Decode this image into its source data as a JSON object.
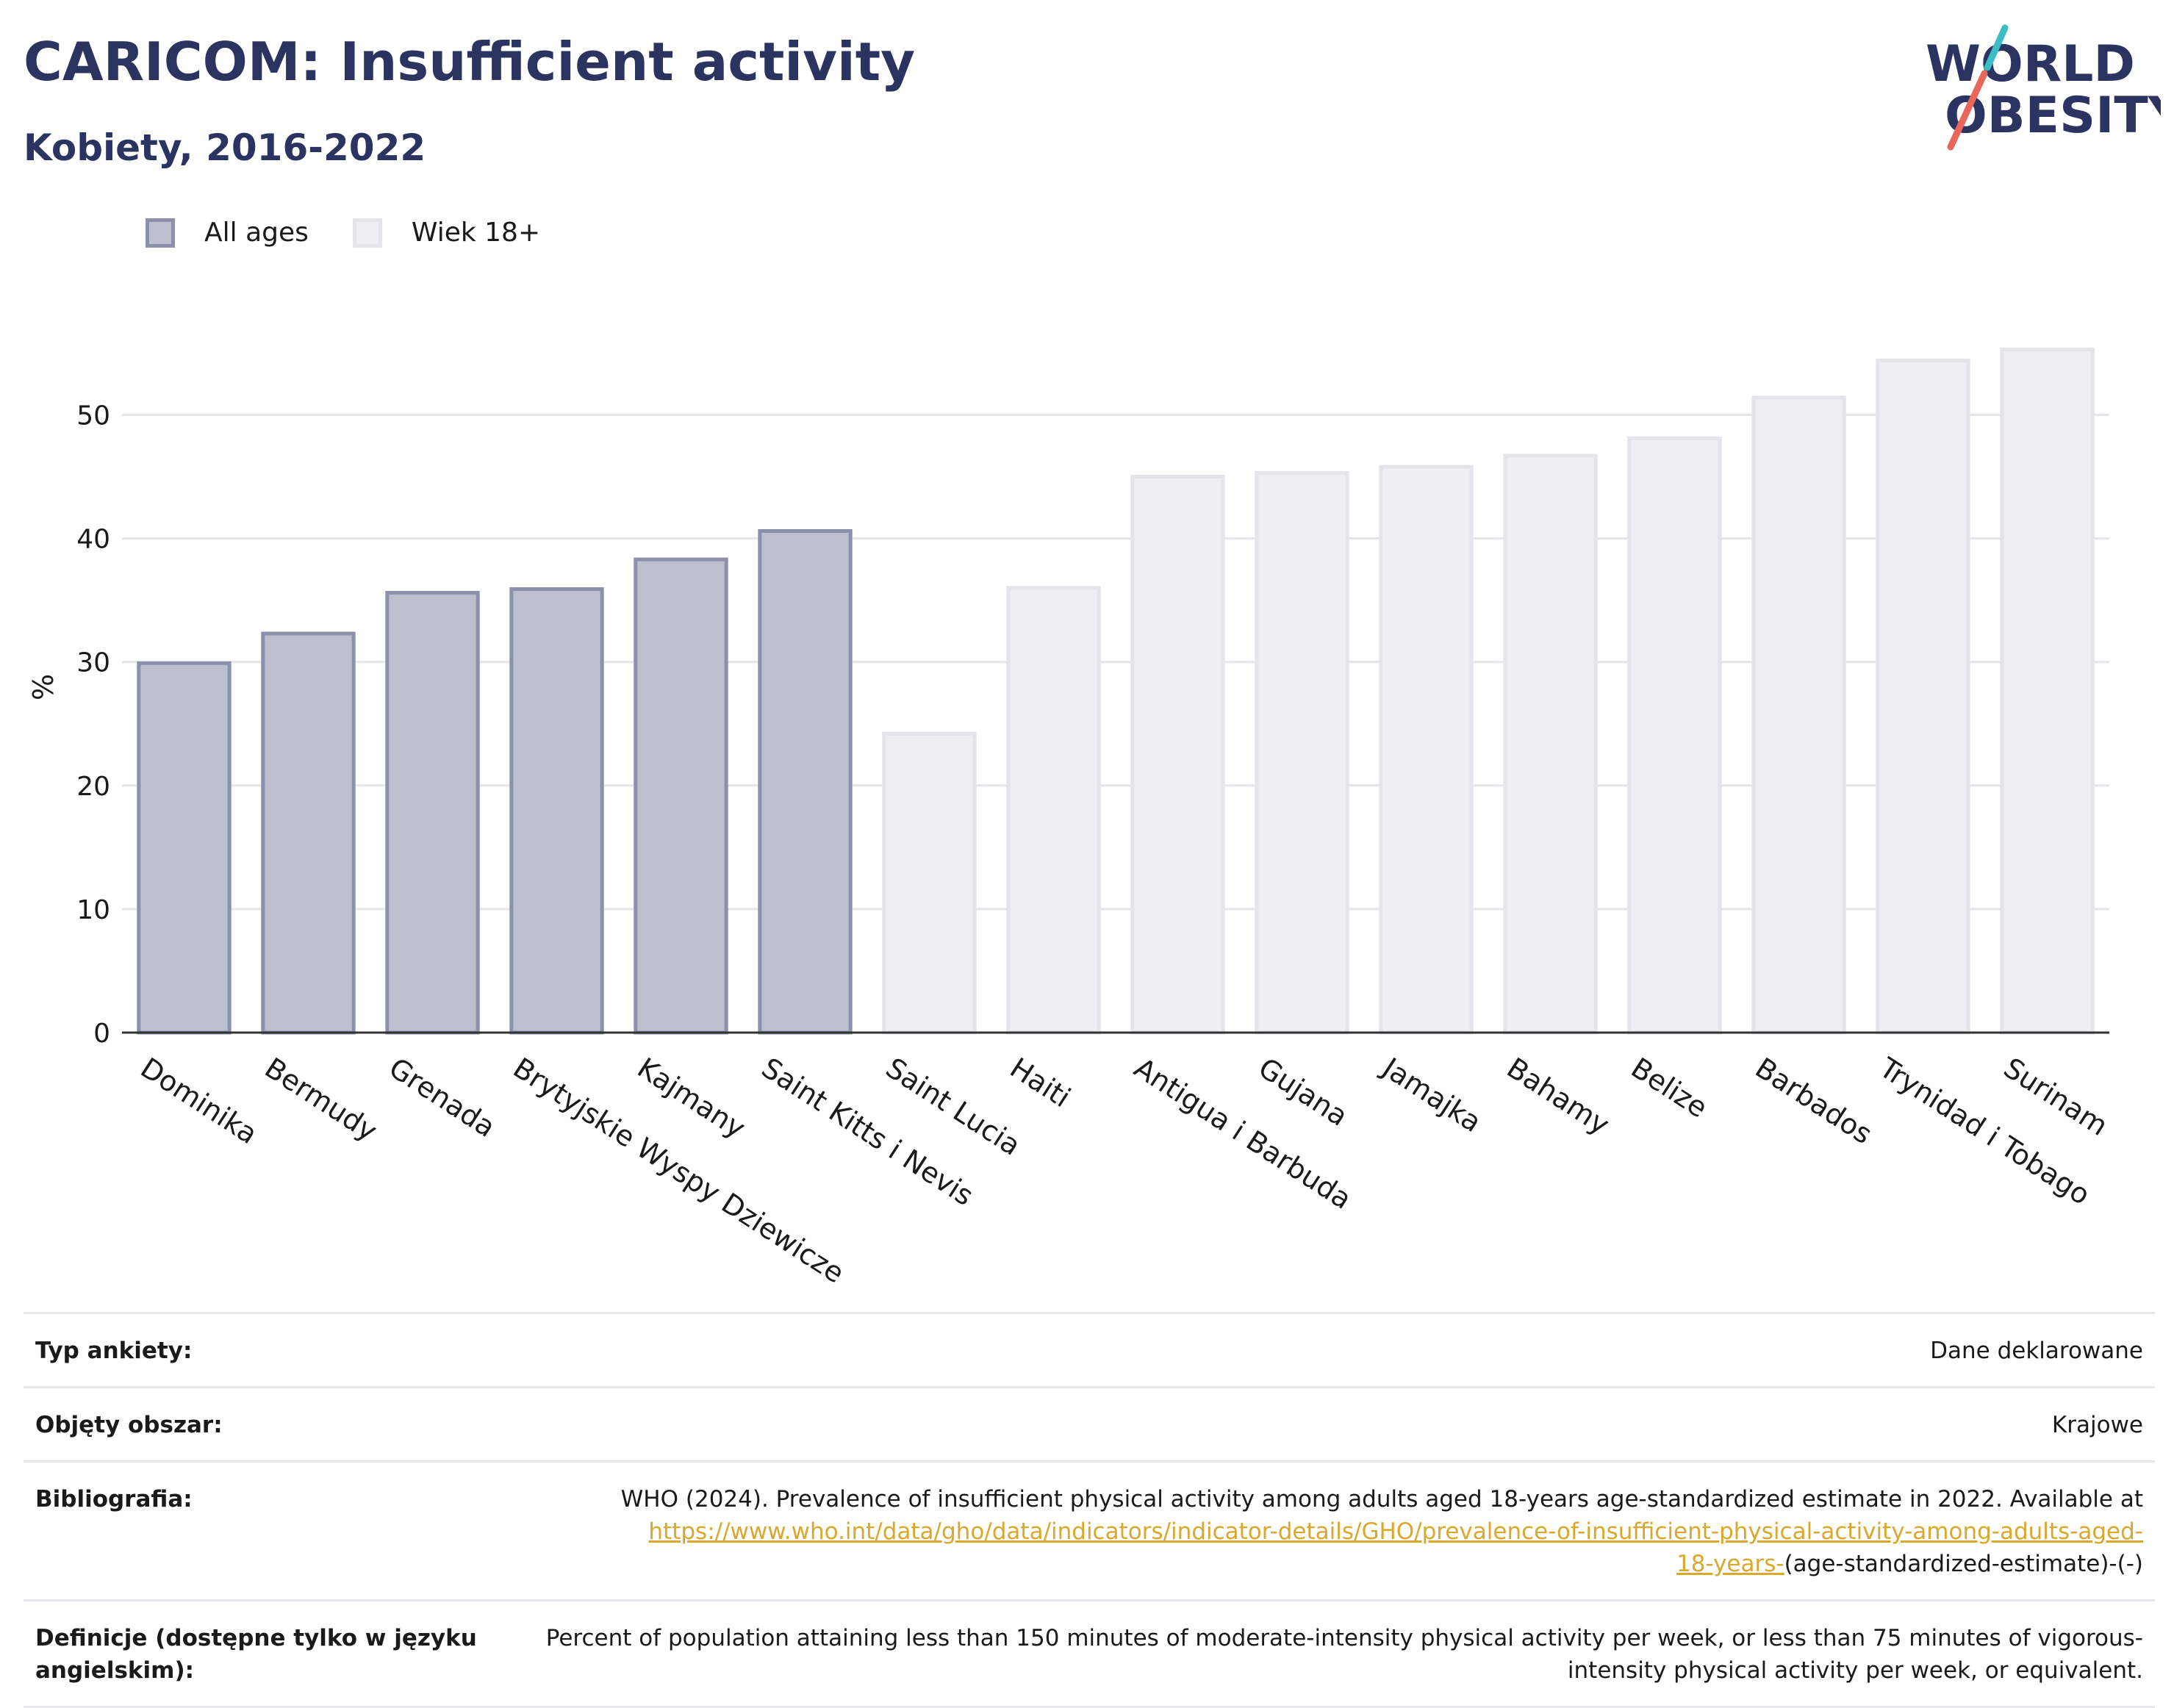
{
  "title": "CARICOM: Insufficient activity",
  "subtitle": "Kobiety, 2016-2022",
  "logo": {
    "line1": "WORLD",
    "line2": "OBESITY"
  },
  "legend": [
    {
      "label": "All ages",
      "color": "#bcbfce",
      "border": "#8b90ab"
    },
    {
      "label": "Wiek 18+",
      "color": "#eeeef3",
      "border": "#e4e4ea"
    }
  ],
  "colors": {
    "title": "#2b3460",
    "all_ages": "#bcbfce",
    "adult": "#eeeef3",
    "link": "#d9a82c",
    "logo_teal": "#3cbcc3",
    "logo_coral": "#e8665a"
  },
  "chart_data": {
    "type": "bar",
    "title": "CARICOM: Insufficient activity",
    "subtitle": "Kobiety, 2016-2022",
    "ylabel": "%",
    "xlabel": "",
    "ylim": [
      0,
      60
    ],
    "yticks": [
      0,
      10,
      20,
      30,
      40,
      50
    ],
    "grid": true,
    "legend_position": "top-left",
    "categories": [
      "Dominika",
      "Bermudy",
      "Grenada",
      "Brytyjskie Wyspy Dziewicze",
      "Kajmany",
      "Saint Kitts i Nevis",
      "Saint Lucia",
      "Haiti",
      "Antigua i Barbuda",
      "Gujana",
      "Jamajka",
      "Bahamy",
      "Belize",
      "Barbados",
      "Trynidad i Tobago",
      "Surinam"
    ],
    "values": [
      29.9,
      32.3,
      35.6,
      35.9,
      38.3,
      40.6,
      24.2,
      36.0,
      45.0,
      45.3,
      45.8,
      46.7,
      48.1,
      51.4,
      54.4,
      55.3
    ],
    "groups": [
      "All ages",
      "All ages",
      "All ages",
      "All ages",
      "All ages",
      "All ages",
      "Wiek 18+",
      "Wiek 18+",
      "Wiek 18+",
      "Wiek 18+",
      "Wiek 18+",
      "Wiek 18+",
      "Wiek 18+",
      "Wiek 18+",
      "Wiek 18+",
      "Wiek 18+"
    ]
  },
  "meta": {
    "survey_label": "Typ ankiety:",
    "survey_value": "Dane deklarowane",
    "coverage_label": "Objęty obszar:",
    "coverage_value": "Krajowe",
    "bib_label": "Bibliografia:",
    "bib_text": "WHO (2024). Prevalence of insufficient physical activity among adults aged 18-years age-standardized estimate in 2022. Available at",
    "bib_link_1": "https://www.who.int/data/gho/data/indicators/indicator-details/GHO/prevalence-of-insufficient-physical-activity-among-adults-aged-",
    "bib_link_2": "18-years-",
    "bib_tail": "(age-standardized-estimate)-(-)",
    "def_label": "Definicje (dostępne tylko w języku angielskim):",
    "def_value": "Percent of population attaining less than 150 minutes of moderate-intensity physical activity per week, or less than 75 minutes of vigorous-intensity physical activity per week, or equivalent."
  }
}
